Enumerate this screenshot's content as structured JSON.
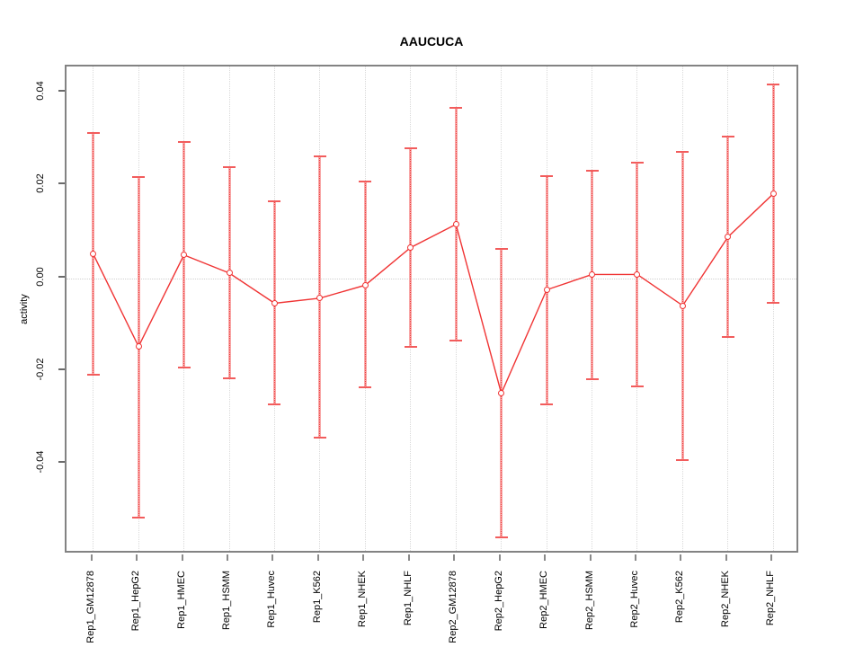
{
  "figure": {
    "title": "AAUCUCA",
    "y_axis_title": "activity"
  },
  "chart_data": {
    "type": "line",
    "title": "AAUCUCA",
    "xlabel": "",
    "ylabel": "activity",
    "legend": "none",
    "grid": "vertical dotted gridline per category; dotted horizontal reference line at y=0",
    "marker": "open-circle",
    "error_bars": true,
    "ylim": [
      -0.0595,
      0.0456
    ],
    "yticks": [
      {
        "value": 0.04,
        "label": "0.04"
      },
      {
        "value": 0.02,
        "label": "0.02"
      },
      {
        "value": 0.0,
        "label": "0.00"
      },
      {
        "value": -0.02,
        "label": "-0.02"
      },
      {
        "value": -0.04,
        "label": "-0.04"
      }
    ],
    "categories": [
      "Rep1_GM12878",
      "Rep1_HepG2",
      "Rep1_HMEC",
      "Rep1_HSMM",
      "Rep1_Huvec",
      "Rep1_K562",
      "Rep1_NHEK",
      "Rep1_NHLF",
      "Rep2_GM12878",
      "Rep2_HepG2",
      "Rep2_HMEC",
      "Rep2_HSMM",
      "Rep2_Huvec",
      "Rep2_K562",
      "Rep2_NHEK",
      "Rep2_NHLF"
    ],
    "series": [
      {
        "name": "activity",
        "values": [
          0.0052,
          -0.0147,
          0.005,
          0.0011,
          -0.0054,
          -0.0043,
          -0.0015,
          0.0066,
          0.0116,
          -0.0248,
          -0.0025,
          0.0008,
          0.0008,
          -0.0059,
          0.0089,
          0.0182
        ],
        "error_upper": [
          0.0312,
          0.0218,
          0.0293,
          0.0239,
          0.0166,
          0.0263,
          0.0209,
          0.028,
          0.0366,
          0.0064,
          0.022,
          0.0232,
          0.0249,
          0.0273,
          0.0305,
          0.0418
        ],
        "error_lower": [
          -0.0208,
          -0.0515,
          -0.0193,
          -0.0215,
          -0.0271,
          -0.0343,
          -0.0235,
          -0.0148,
          -0.0134,
          -0.0559,
          -0.0271,
          -0.0218,
          -0.0233,
          -0.0391,
          -0.0126,
          -0.0053
        ]
      }
    ],
    "colors": {
      "series_line": "#f03434",
      "marker_ring": "#f03434",
      "error_bar_solid": "#f8a8a8",
      "error_bar_dotted": "#ef3b3b",
      "error_cap": "#f25c5c",
      "gridline": "#d9d9d9",
      "zero_line": "#cfcfcf",
      "plot_border": "#838383",
      "text": "#000000"
    }
  }
}
